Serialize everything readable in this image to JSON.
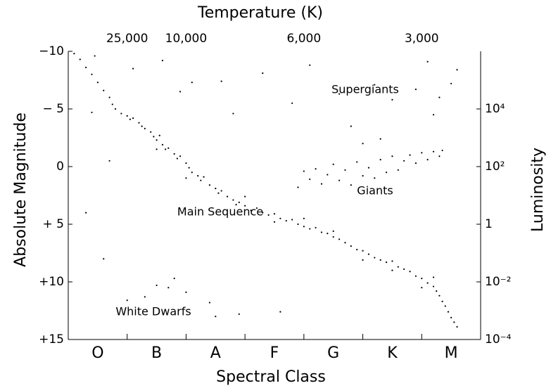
{
  "chart_data": {
    "type": "scatter",
    "title": "Temperature (K)",
    "x_label": "Spectral Class",
    "y_label": "Absolute Magnitude",
    "y2_label": "Luminosity",
    "categories": [
      "O",
      "B",
      "A",
      "F",
      "G",
      "K",
      "M"
    ],
    "xlim": [
      0,
      7
    ],
    "x2ticks": [
      {
        "value": 1,
        "label": "25,000"
      },
      {
        "value": 2,
        "label": "10,000"
      },
      {
        "value": 4,
        "label": "6,000"
      },
      {
        "value": 6,
        "label": "3,000"
      }
    ],
    "ylim": [
      -10,
      15
    ],
    "yticks": [
      {
        "value": -10,
        "label": "−10"
      },
      {
        "value": -5,
        "label": "− 5"
      },
      0,
      {
        "value": 5,
        "label": "+ 5"
      },
      {
        "value": 10,
        "label": "+10"
      },
      {
        "value": 15,
        "label": "+15"
      }
    ],
    "y2scale": "log",
    "y2lim": [
      0.0001,
      1000000
    ],
    "y2ticks": [
      {
        "value": 10000,
        "label": "10⁴"
      },
      {
        "value": 100,
        "label": "10²"
      },
      1,
      {
        "value": 0.01,
        "label": "10⁻²"
      },
      {
        "value": 0.0001,
        "label": "10⁻⁴"
      }
    ],
    "color": "#000000",
    "annotations": [
      "Supergiants",
      "Giants",
      "Main Sequence",
      "White Dwarfs"
    ],
    "x": [
      0.1,
      0.2,
      0.3,
      0.4,
      0.5,
      0.6,
      0.7,
      0.75,
      0.8,
      0.9,
      1.0,
      1.05,
      1.1,
      1.2,
      1.25,
      1.3,
      1.4,
      1.45,
      1.5,
      1.55,
      1.6,
      1.65,
      1.7,
      1.8,
      1.85,
      1.9,
      2.0,
      2.05,
      2.1,
      2.2,
      2.25,
      2.3,
      2.4,
      2.5,
      2.55,
      2.6,
      2.7,
      2.8,
      2.85,
      2.9,
      3.0,
      3.1,
      3.2,
      3.3,
      3.4,
      3.5,
      3.6,
      3.7,
      3.8,
      3.9,
      4.0,
      4.1,
      4.2,
      4.3,
      4.4,
      4.5,
      4.6,
      4.7,
      4.8,
      4.9,
      5.0,
      5.1,
      5.2,
      5.3,
      5.4,
      5.5,
      5.6,
      5.7,
      5.8,
      5.9,
      6.0,
      6.1,
      6.2,
      6.25,
      6.3,
      6.35,
      6.4,
      6.45,
      6.5,
      6.55,
      6.6,
      2.0,
      3.0,
      4.0,
      5.0,
      5.5,
      6.0,
      6.2,
      4.5,
      3.5,
      1.5,
      3.9,
      4.0,
      4.1,
      4.2,
      4.3,
      4.4,
      4.5,
      4.6,
      4.7,
      4.8,
      4.9,
      5.0,
      5.1,
      5.2,
      5.3,
      5.4,
      5.5,
      5.6,
      5.7,
      5.8,
      5.9,
      6.0,
      6.1,
      6.2,
      6.3,
      6.35,
      5.0,
      4.8,
      5.3,
      1.1,
      1.9,
      2.1,
      2.6,
      2.8,
      3.8,
      4.1,
      4.6,
      5.2,
      5.5,
      5.9,
      6.1,
      6.3,
      6.5,
      6.6,
      0.4,
      1.6,
      3.3,
      6.2,
      0.45,
      1.3,
      1.7,
      1.8,
      2.0,
      2.4,
      2.9,
      0.6,
      1.0,
      0.3,
      3.6,
      1.5,
      0.7,
      2.5
    ],
    "values": [
      -9.8,
      -9.3,
      -8.6,
      -8,
      -7.3,
      -6.6,
      -6,
      -5.4,
      -5,
      -4.6,
      -4.4,
      -4.1,
      -4.2,
      -3.8,
      -3.5,
      -3.3,
      -3,
      -2.6,
      -2.3,
      -2.7,
      -1.9,
      -1.5,
      -1.6,
      -1.1,
      -0.7,
      -0.9,
      -0.3,
      0.1,
      0.5,
      0.8,
      1.2,
      0.9,
      1.6,
      1.9,
      2.3,
      2.1,
      2.6,
      2.9,
      3.3,
      3.1,
      3.4,
      3.8,
      3.6,
      4.0,
      4.2,
      4.1,
      4.5,
      4.7,
      4.6,
      5.0,
      5.2,
      5.4,
      5.3,
      5.7,
      5.8,
      6.1,
      6.3,
      6.6,
      6.9,
      7.2,
      7.3,
      7.6,
      7.9,
      8.1,
      8.3,
      8.2,
      8.7,
      8.9,
      9.1,
      9.5,
      9.7,
      10.1,
      10.4,
      10.8,
      11.2,
      11.7,
      12.1,
      12.6,
      13.1,
      13.5,
      13.9,
      1.0,
      2.6,
      4.5,
      8.1,
      9.0,
      10.5,
      9.6,
      5.6,
      4.8,
      -1.5,
      1.8,
      0.4,
      1.1,
      0.2,
      1.5,
      0.7,
      -0.2,
      1.2,
      0.3,
      1.6,
      -0.4,
      0.8,
      0.1,
      1.0,
      -0.6,
      0.5,
      -0.9,
      0.3,
      -0.5,
      -1.0,
      -0.3,
      -1.2,
      -0.6,
      -1.3,
      -0.9,
      -1.4,
      -2.0,
      -3.5,
      -2.4,
      -8.5,
      -6.5,
      -7.3,
      -7.4,
      -4.6,
      -5.5,
      -8.8,
      -6.3,
      -7.1,
      -5.8,
      -6.7,
      -9.1,
      -6.0,
      -7.2,
      -8.4,
      -4.7,
      -9.2,
      -8.1,
      -4.5,
      -9.6,
      11.3,
      10.5,
      9.7,
      10.9,
      11.8,
      12.8,
      8.0,
      11.6,
      4.0,
      12.6,
      10.3,
      -0.5,
      13.0
    ]
  }
}
